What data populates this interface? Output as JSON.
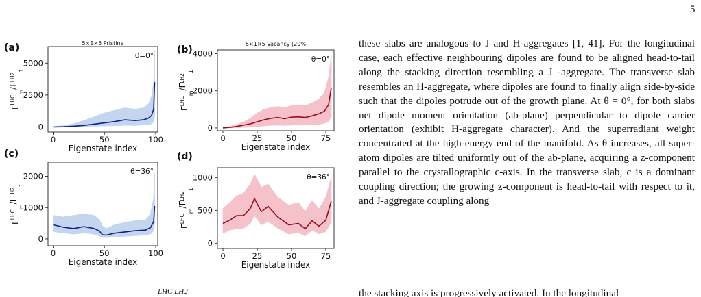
{
  "page": {
    "number": "5"
  },
  "figure": {
    "caption_fragment": "LHC  LH2",
    "panels": [
      {
        "id": "a",
        "letter": "(a)",
        "title": "5×1×5  Pristine",
        "angle": "θ=0°",
        "ylabel_main": "Γ",
        "ylabel_sup": "LHC",
        "ylabel_sub": "m",
        "ylabel_over": "/Γ",
        "ylabel_sup2": "LH2",
        "ylabel_sub2": "1",
        "xlabel": "Eigenstate index",
        "xticks": [
          "0",
          "50",
          "100"
        ],
        "yticks": [
          "0",
          "2500",
          "5000"
        ],
        "color_line": "#0f1f8c",
        "color_band": "#b9d0ea"
      },
      {
        "id": "b",
        "letter": "(b)",
        "title": "5×1×5  Vacancy (20%",
        "angle": "θ=0°",
        "ylabel_main": "Γ",
        "ylabel_sup": "LHC",
        "ylabel_sub": "m",
        "ylabel_over": "/Γ",
        "ylabel_sup2": "LH2",
        "ylabel_sub2": "1",
        "xlabel": "Eigenstate index",
        "xticks": [
          "0",
          "25",
          "50",
          "75"
        ],
        "yticks": [
          "0",
          "2000",
          "4000"
        ],
        "color_line": "#9b0a1a",
        "color_band": "#f4b8c2"
      },
      {
        "id": "c",
        "letter": "(c)",
        "title": "",
        "angle": "θ=36°",
        "ylabel_main": "Γ",
        "ylabel_sup": "LHC",
        "ylabel_sub": "m",
        "ylabel_over": "/Γ",
        "ylabel_sup2": "LH2",
        "ylabel_sub2": "1",
        "xlabel": "Eigenstate index",
        "xticks": [
          "0",
          "50",
          "100"
        ],
        "yticks": [
          "0",
          "1000",
          "2000"
        ],
        "color_line": "#0f1f8c",
        "color_band": "#b9d0ea"
      },
      {
        "id": "d",
        "letter": "(d)",
        "title": "",
        "angle": "θ=36°",
        "ylabel_main": "Γ",
        "ylabel_sup": "LHC",
        "ylabel_sub": "m",
        "ylabel_over": "/Γ",
        "ylabel_sup2": "LH2",
        "ylabel_sub2": "1",
        "xlabel": "Eigenstate index",
        "xticks": [
          "0",
          "25",
          "50",
          "75"
        ],
        "yticks": [
          "0",
          "500",
          "1000"
        ],
        "color_line": "#9b0a1a",
        "color_band": "#f4b8c2"
      }
    ]
  },
  "chart_data": [
    {
      "panel": "a",
      "type": "line",
      "title": "5×1×5  Pristine",
      "annotation": "θ=0°",
      "xlabel": "Eigenstate index",
      "ylabel": "Γ_m^LHC/Γ_1^LH2",
      "xlim": [
        -5,
        102
      ],
      "ylim": [
        -400,
        6300
      ],
      "grid": false,
      "x": [
        0,
        10,
        20,
        30,
        40,
        50,
        60,
        70,
        80,
        88,
        93,
        96,
        98,
        99
      ],
      "y": [
        0,
        20,
        60,
        120,
        220,
        320,
        420,
        560,
        500,
        560,
        700,
        900,
        1400,
        3500
      ],
      "lower": [
        0,
        5,
        20,
        40,
        60,
        80,
        100,
        130,
        120,
        150,
        180,
        250,
        380,
        900
      ],
      "upper": [
        50,
        100,
        250,
        500,
        800,
        1100,
        1300,
        1500,
        1400,
        1500,
        1800,
        2400,
        3500,
        6000
      ]
    },
    {
      "panel": "b",
      "type": "line",
      "title": "5×1×5  Vacancy (20%",
      "annotation": "θ=0°",
      "xlabel": "Eigenstate index",
      "ylabel": "Γ_m^LHC/Γ_1^LH2",
      "xlim": [
        -4,
        81
      ],
      "ylim": [
        -150,
        4200
      ],
      "grid": false,
      "x": [
        0,
        5,
        10,
        15,
        20,
        25,
        30,
        35,
        40,
        45,
        50,
        55,
        60,
        65,
        70,
        74,
        77,
        79
      ],
      "y": [
        0,
        30,
        80,
        150,
        220,
        330,
        440,
        520,
        560,
        500,
        580,
        600,
        560,
        650,
        760,
        900,
        1250,
        2150
      ],
      "lower": [
        0,
        5,
        15,
        30,
        50,
        80,
        110,
        140,
        150,
        130,
        150,
        160,
        150,
        170,
        200,
        250,
        350,
        600
      ],
      "upper": [
        20,
        80,
        180,
        320,
        520,
        800,
        1000,
        1100,
        1150,
        1100,
        1200,
        1250,
        1200,
        1350,
        1550,
        1900,
        2700,
        3900
      ]
    },
    {
      "panel": "c",
      "type": "line",
      "annotation": "θ=36°",
      "xlabel": "Eigenstate index",
      "ylabel": "Γ_m^LHC/Γ_1^LH2",
      "xlim": [
        -5,
        102
      ],
      "ylim": [
        -220,
        2450
      ],
      "grid": false,
      "x": [
        0,
        10,
        20,
        30,
        40,
        45,
        48,
        52,
        60,
        70,
        80,
        90,
        95,
        98,
        99
      ],
      "y": [
        450,
        370,
        330,
        390,
        330,
        250,
        130,
        120,
        180,
        220,
        260,
        280,
        360,
        550,
        1050
      ],
      "lower": [
        230,
        190,
        150,
        190,
        150,
        90,
        50,
        40,
        60,
        80,
        100,
        120,
        160,
        250,
        500
      ],
      "upper": [
        750,
        700,
        750,
        800,
        750,
        620,
        420,
        330,
        450,
        520,
        580,
        600,
        800,
        1300,
        2100
      ]
    },
    {
      "panel": "d",
      "type": "line",
      "annotation": "θ=36°",
      "xlabel": "Eigenstate index",
      "ylabel": "Γ_m^LHC/Γ_1^LH2",
      "xlim": [
        -4,
        81
      ],
      "ylim": [
        -80,
        1150
      ],
      "grid": false,
      "x": [
        0,
        5,
        10,
        15,
        20,
        23,
        28,
        33,
        40,
        48,
        55,
        60,
        65,
        70,
        75,
        79
      ],
      "y": [
        300,
        350,
        420,
        420,
        530,
        680,
        480,
        560,
        400,
        280,
        300,
        220,
        340,
        260,
        350,
        640
      ],
      "lower": [
        150,
        200,
        220,
        230,
        300,
        420,
        280,
        330,
        230,
        140,
        160,
        110,
        200,
        140,
        180,
        320
      ],
      "upper": [
        530,
        620,
        720,
        760,
        900,
        1050,
        850,
        900,
        700,
        580,
        620,
        480,
        650,
        520,
        700,
        1000
      ]
    }
  ],
  "body": {
    "paragraph": "these slabs are analogous to J and H-aggregates [1, 41]. For the longitudinal case, each effective neighbouring dipoles are found to be aligned head-to-tail along the stacking direction resembling a J -aggregate. The transverse slab resembles an H-aggregate, where dipoles are found to finally align side-by-side such that the dipoles potrude out of the growth plane. At θ = 0°, for both slabs net dipole moment orientation (ab-plane) perpendicular to dipole carrier orientation (exhibit H-aggregate character). And the superradiant weight concentrated at the high-energy end of the manifold. As θ increases, all super-atom dipoles are tilted uniformly out of the ab-plane, acquiring a z-component parallel to the crystallographic c-axis. In the transverse slab, c is a dominant coupling direction; the growing z-component is head-to-tail with respect to it, and J-aggregate coupling along",
    "cut_line": "the stacking axis is progressively activated. In the longitudinal"
  }
}
